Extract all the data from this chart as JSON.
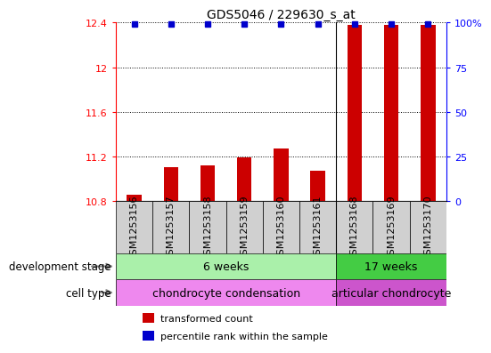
{
  "title": "GDS5046 / 229630_s_at",
  "samples": [
    "GSM1253156",
    "GSM1253157",
    "GSM1253158",
    "GSM1253159",
    "GSM1253160",
    "GSM1253161",
    "GSM1253168",
    "GSM1253169",
    "GSM1253170"
  ],
  "transformed_counts": [
    10.855,
    11.1,
    11.12,
    11.19,
    11.27,
    11.07,
    12.38,
    12.38,
    12.38
  ],
  "percentile_ranks": [
    99,
    99,
    99,
    99,
    99,
    99,
    99,
    99,
    99
  ],
  "ylim": [
    10.8,
    12.4
  ],
  "y_ticks": [
    10.8,
    11.2,
    11.6,
    12.0,
    12.4
  ],
  "y_tick_labels": [
    "10.8",
    "11.2",
    "11.6",
    "12",
    "12.4"
  ],
  "right_yticks": [
    0,
    25,
    50,
    75,
    100
  ],
  "right_ytick_labels": [
    "0",
    "25",
    "50",
    "75",
    "100%"
  ],
  "bar_color": "#cc0000",
  "dot_color": "#0000cc",
  "development_stages": [
    {
      "label": "6 weeks",
      "start": 0,
      "end": 6,
      "color": "#aaf0aa"
    },
    {
      "label": "17 weeks",
      "start": 6,
      "end": 9,
      "color": "#44cc44"
    }
  ],
  "cell_types": [
    {
      "label": "chondrocyte condensation",
      "start": 0,
      "end": 6,
      "color": "#ee88ee"
    },
    {
      "label": "articular chondrocyte",
      "start": 6,
      "end": 9,
      "color": "#cc55cc"
    }
  ],
  "dev_stage_label": "development stage",
  "cell_type_label": "cell type",
  "legend_bar_label": "transformed count",
  "legend_dot_label": "percentile rank within the sample",
  "title_fontsize": 10,
  "tick_fontsize": 8,
  "label_fontsize": 9,
  "bar_width": 0.4,
  "group_divider": 5.5,
  "n_samples": 9
}
